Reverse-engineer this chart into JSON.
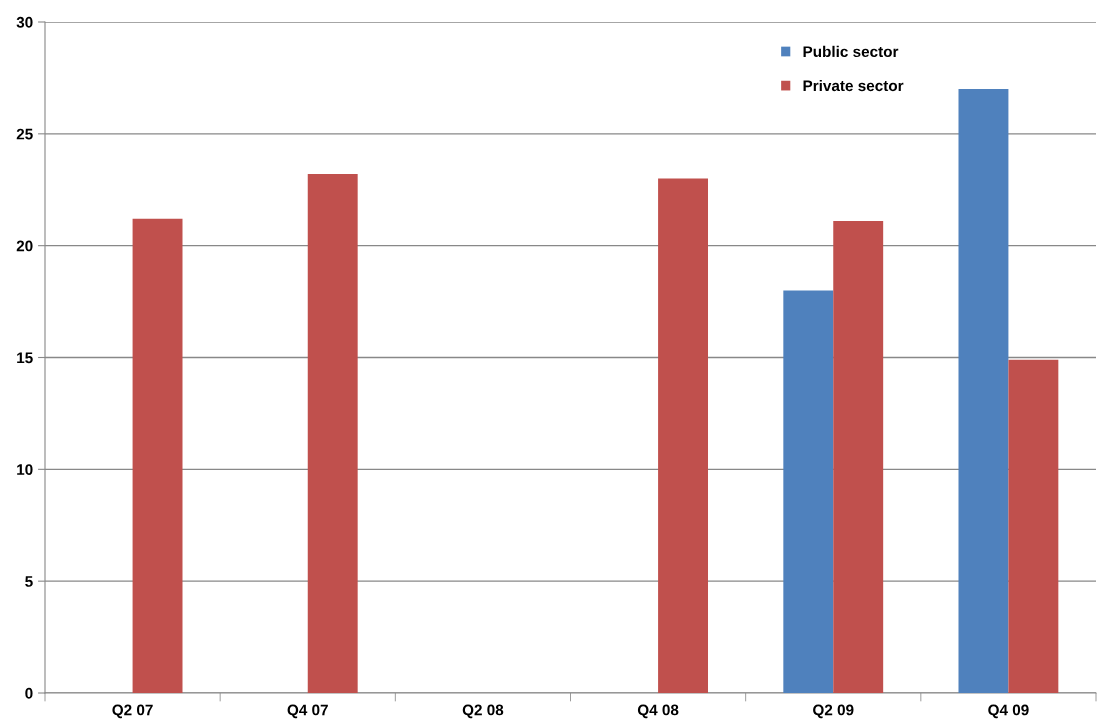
{
  "chart_data": {
    "type": "bar",
    "categories": [
      "Q2 07",
      "Q4 07",
      "Q2 08",
      "Q4 08",
      "Q2 09",
      "Q4 09"
    ],
    "series": [
      {
        "name": "Public sector",
        "color": "#4f81bd",
        "values": [
          null,
          null,
          null,
          null,
          18.0,
          27.0
        ]
      },
      {
        "name": "Private sector",
        "color": "#c0504d",
        "values": [
          21.2,
          23.2,
          null,
          23.0,
          21.1,
          14.9
        ]
      }
    ],
    "ylim": [
      0,
      30
    ],
    "yticks": [
      0,
      5,
      10,
      15,
      20,
      25,
      30
    ],
    "grid": "y",
    "legend": "top right"
  }
}
